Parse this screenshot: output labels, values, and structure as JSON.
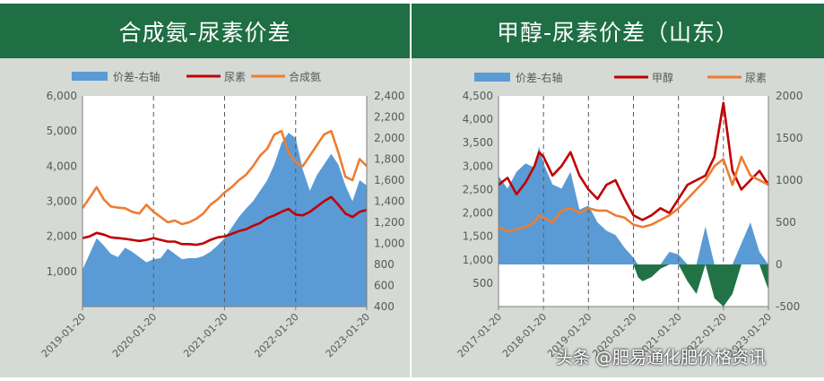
{
  "watermark": "头条 @肥易通化肥价格资讯",
  "chart_data": [
    {
      "type": "area+line",
      "title": "合成氨-尿素价差",
      "legend": [
        {
          "label": "价差-右轴",
          "type": "area",
          "color": "#5b9bd5"
        },
        {
          "label": "尿素",
          "type": "line",
          "color": "#c00000"
        },
        {
          "label": "合成氨",
          "type": "line",
          "color": "#ed7d31"
        }
      ],
      "left_axis": {
        "min": 0,
        "max": 6000,
        "ticks": [
          "1,000",
          "2,000",
          "3,000",
          "4,000",
          "5,000",
          "6,000"
        ],
        "tick_values": [
          1000,
          2000,
          3000,
          4000,
          5000,
          6000
        ]
      },
      "right_axis": {
        "min": 400,
        "max": 2400,
        "ticks": [
          "400",
          "600",
          "800",
          "1,000",
          "1,200",
          "1,400",
          "1,600",
          "1,800",
          "2,000",
          "2,200",
          "2,400"
        ],
        "tick_values": [
          400,
          600,
          800,
          1000,
          1200,
          1400,
          1600,
          1800,
          2000,
          2200,
          2400
        ]
      },
      "x_ticks": [
        "2019-01-20",
        "2020-01-20",
        "2021-01-20",
        "2022-01-20",
        "2023-01-20"
      ],
      "x_tick_pos": [
        0,
        1,
        2,
        3,
        4
      ],
      "x_range": [
        0,
        4.0
      ],
      "vlines": [
        1,
        2,
        3
      ],
      "series": [
        {
          "name": "价差-右轴",
          "axis": "right",
          "type": "area",
          "color": "#5b9bd5",
          "x": [
            0,
            0.1,
            0.2,
            0.3,
            0.4,
            0.5,
            0.6,
            0.7,
            0.8,
            0.9,
            1.0,
            1.1,
            1.2,
            1.3,
            1.4,
            1.5,
            1.6,
            1.7,
            1.8,
            1.9,
            2.0,
            2.1,
            2.2,
            2.3,
            2.4,
            2.5,
            2.6,
            2.7,
            2.8,
            2.9,
            3.0,
            3.1,
            3.2,
            3.3,
            3.4,
            3.5,
            3.6,
            3.7,
            3.8,
            3.9,
            4.0
          ],
          "y": [
            750,
            900,
            1050,
            980,
            900,
            870,
            960,
            920,
            870,
            820,
            850,
            860,
            950,
            900,
            850,
            860,
            860,
            880,
            920,
            980,
            1050,
            1150,
            1250,
            1330,
            1400,
            1500,
            1600,
            1750,
            1950,
            2050,
            2000,
            1700,
            1500,
            1650,
            1750,
            1850,
            1750,
            1550,
            1400,
            1600,
            1550
          ]
        },
        {
          "name": "尿素",
          "axis": "left",
          "type": "line",
          "color": "#c00000",
          "x": [
            0,
            0.1,
            0.2,
            0.3,
            0.4,
            0.5,
            0.6,
            0.7,
            0.8,
            0.9,
            1.0,
            1.1,
            1.2,
            1.3,
            1.4,
            1.5,
            1.6,
            1.7,
            1.8,
            1.9,
            2.0,
            2.1,
            2.2,
            2.3,
            2.4,
            2.5,
            2.6,
            2.7,
            2.8,
            2.9,
            3.0,
            3.1,
            3.2,
            3.3,
            3.4,
            3.5,
            3.6,
            3.7,
            3.8,
            3.9,
            4.0
          ],
          "y": [
            1950,
            2000,
            2100,
            2050,
            1970,
            1950,
            1930,
            1900,
            1870,
            1900,
            1950,
            1900,
            1850,
            1850,
            1780,
            1780,
            1760,
            1800,
            1900,
            1970,
            2000,
            2070,
            2150,
            2200,
            2300,
            2380,
            2520,
            2600,
            2700,
            2780,
            2620,
            2600,
            2700,
            2850,
            3000,
            3120,
            2900,
            2650,
            2550,
            2700,
            2750
          ]
        },
        {
          "name": "合成氨",
          "axis": "left",
          "type": "line",
          "color": "#ed7d31",
          "x": [
            0,
            0.1,
            0.2,
            0.3,
            0.4,
            0.5,
            0.6,
            0.7,
            0.8,
            0.9,
            1.0,
            1.1,
            1.2,
            1.3,
            1.4,
            1.5,
            1.6,
            1.7,
            1.8,
            1.9,
            2.0,
            2.1,
            2.2,
            2.3,
            2.4,
            2.5,
            2.6,
            2.7,
            2.8,
            2.9,
            3.0,
            3.1,
            3.2,
            3.3,
            3.4,
            3.5,
            3.6,
            3.7,
            3.8,
            3.9,
            4.0
          ],
          "y": [
            2800,
            3100,
            3400,
            3050,
            2850,
            2820,
            2800,
            2700,
            2650,
            2900,
            2700,
            2550,
            2400,
            2450,
            2350,
            2400,
            2500,
            2650,
            2900,
            3050,
            3250,
            3400,
            3600,
            3750,
            4000,
            4300,
            4500,
            4900,
            5000,
            4400,
            4100,
            4000,
            4300,
            4600,
            4900,
            5000,
            4400,
            3700,
            3600,
            4200,
            4000
          ]
        }
      ]
    },
    {
      "type": "area+line",
      "title": "甲醇-尿素价差（山东）",
      "legend": [
        {
          "label": "价差-右轴",
          "type": "area",
          "color": "#5b9bd5"
        },
        {
          "label": "甲醇",
          "type": "line",
          "color": "#c00000"
        },
        {
          "label": "尿素",
          "type": "line",
          "color": "#ed7d31"
        }
      ],
      "left_axis": {
        "min": 0,
        "max": 4500,
        "ticks": [
          "500",
          "1,000",
          "1,500",
          "2,000",
          "2,500",
          "3,000",
          "3,500",
          "4,000",
          "4,500"
        ],
        "tick_values": [
          500,
          1000,
          1500,
          2000,
          2500,
          3000,
          3500,
          4000,
          4500
        ]
      },
      "right_axis": {
        "min": -500,
        "max": 2000,
        "ticks": [
          "-500",
          "0",
          "500",
          "1000",
          "1500",
          "2000"
        ],
        "tick_values": [
          -500,
          0,
          500,
          1000,
          1500,
          2000
        ]
      },
      "x_ticks": [
        "2017-01-20",
        "2018-01-20",
        "2019-01-20",
        "2020-01-20",
        "2021-01-20",
        "2022-01-20",
        "2023-01-20"
      ],
      "x_tick_pos": [
        0,
        1,
        2,
        3,
        4,
        5,
        6
      ],
      "x_range": [
        0,
        6.0
      ],
      "vlines": [
        1,
        2,
        3,
        4,
        5
      ],
      "series": [
        {
          "name": "价差-右轴",
          "axis": "right",
          "type": "area",
          "color": "#5b9bd5",
          "negative_color": "#217346",
          "x": [
            0,
            0.2,
            0.4,
            0.6,
            0.8,
            0.9,
            1.0,
            1.2,
            1.4,
            1.6,
            1.8,
            2.0,
            2.2,
            2.4,
            2.6,
            2.8,
            3.0,
            3.1,
            3.2,
            3.4,
            3.6,
            3.8,
            4.0,
            4.2,
            4.4,
            4.6,
            4.8,
            5.0,
            5.2,
            5.4,
            5.6,
            5.8,
            6.0
          ],
          "y": [
            1050,
            900,
            1100,
            1200,
            1150,
            1400,
            1200,
            950,
            900,
            1100,
            650,
            700,
            500,
            400,
            350,
            200,
            80,
            -150,
            -200,
            -150,
            -50,
            150,
            120,
            -200,
            -350,
            450,
            -400,
            -500,
            -350,
            250,
            500,
            150,
            -300
          ]
        },
        {
          "name": "甲醇",
          "axis": "left",
          "type": "line",
          "color": "#c00000",
          "x": [
            0,
            0.2,
            0.4,
            0.6,
            0.8,
            0.9,
            1.0,
            1.2,
            1.4,
            1.6,
            1.8,
            2.0,
            2.2,
            2.4,
            2.6,
            2.8,
            3.0,
            3.2,
            3.4,
            3.6,
            3.8,
            4.0,
            4.2,
            4.4,
            4.6,
            4.8,
            5.0,
            5.2,
            5.4,
            5.6,
            5.8,
            6.0
          ],
          "y": [
            2600,
            2750,
            2400,
            2650,
            3000,
            3300,
            3200,
            2800,
            3000,
            3300,
            2800,
            2500,
            2300,
            2600,
            2700,
            2300,
            1950,
            1850,
            1950,
            2100,
            2000,
            2300,
            2600,
            2700,
            2800,
            3200,
            4350,
            2900,
            2500,
            2700,
            2900,
            2600
          ]
        },
        {
          "name": "尿素",
          "axis": "left",
          "type": "line",
          "color": "#ed7d31",
          "x": [
            0,
            0.2,
            0.4,
            0.6,
            0.8,
            0.9,
            1.0,
            1.2,
            1.4,
            1.6,
            1.8,
            2.0,
            2.2,
            2.4,
            2.6,
            2.8,
            3.0,
            3.2,
            3.4,
            3.6,
            3.8,
            4.0,
            4.2,
            4.4,
            4.6,
            4.8,
            5.0,
            5.2,
            5.4,
            5.6,
            5.8,
            6.0
          ],
          "y": [
            1700,
            1600,
            1650,
            1700,
            1800,
            1950,
            1900,
            1800,
            2050,
            2100,
            2000,
            2100,
            2050,
            2050,
            1950,
            1900,
            1750,
            1700,
            1750,
            1850,
            1950,
            2100,
            2300,
            2500,
            2700,
            3000,
            3150,
            2600,
            3200,
            2800,
            2700,
            2600
          ]
        }
      ]
    }
  ]
}
